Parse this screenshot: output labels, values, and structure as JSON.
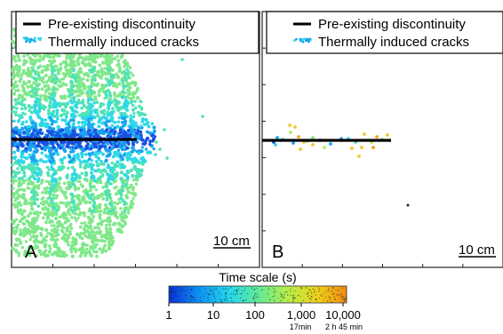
{
  "chart_data": [
    {
      "type": "scatter",
      "panel_label": "A",
      "legend": {
        "placement": "top",
        "items": [
          "Pre-existing discontinuity",
          "Thermally induced cracks"
        ]
      },
      "scale_bar": "10 cm",
      "discontinuity": {
        "x": [
          0,
          140
        ]
      },
      "crack_field": {
        "x_range": [
          0,
          150
        ],
        "columns": [
          30,
          50,
          70,
          90,
          110,
          130,
          145
        ],
        "density": "high"
      },
      "outliers": [
        [
          -2,
          42
        ],
        [
          -22,
          25
        ],
        [
          -40,
          30
        ]
      ]
    },
    {
      "type": "scatter",
      "panel_label": "B",
      "legend": {
        "placement": "top",
        "items": [
          "Pre-existing discontinuity",
          "Thermally induced cracks"
        ]
      },
      "scale_bar": "10 cm",
      "discontinuity": {
        "x": [
          0,
          140
        ]
      },
      "crack_field": {
        "x_range": [
          0,
          140
        ],
        "density": "sparse"
      },
      "outliers": [
        [
          -75,
          155
        ]
      ]
    }
  ],
  "colorbar": {
    "title": "Time scale (s)",
    "ticks": [
      "1",
      "10",
      "100",
      "1,000",
      "10,000"
    ],
    "sublabels": [
      "17min",
      "2 h 45 min"
    ],
    "colors": [
      "#0b2fd6",
      "#0c8ff2",
      "#22d6f0",
      "#5fea9a",
      "#b4ee4a",
      "#f0d31c",
      "#f08a10"
    ]
  },
  "colors": {
    "discontinuity": "#000000",
    "cracks": [
      "#1a4fe0",
      "#1aa3f0",
      "#2ed8e8",
      "#4fe2b8",
      "#7fe88a",
      "#b8ea5a",
      "#f0c82a",
      "#f0a020"
    ]
  }
}
